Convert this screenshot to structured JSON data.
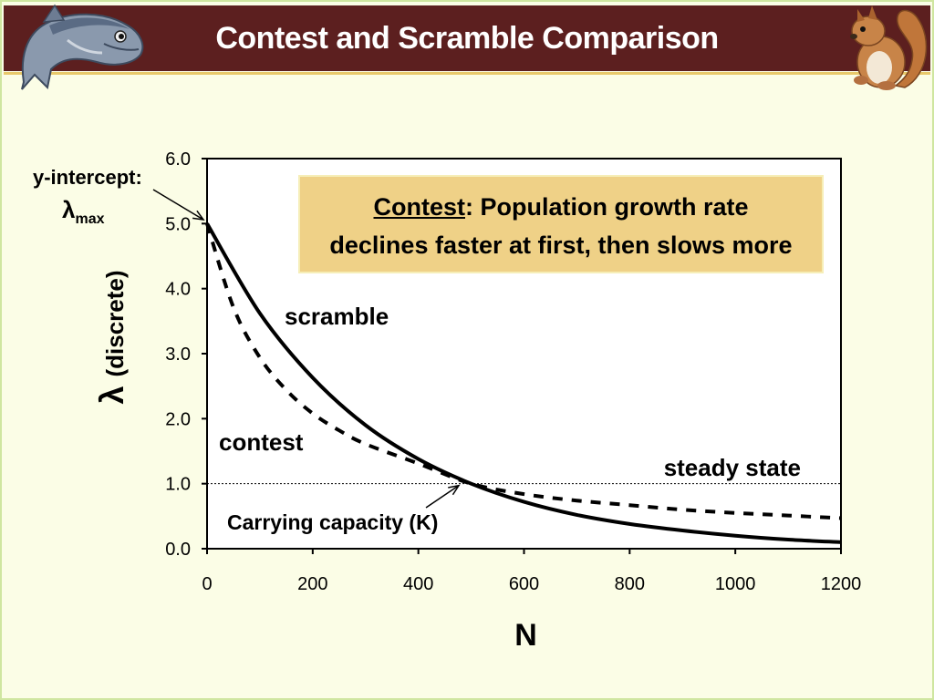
{
  "slide": {
    "title": "Contest and Scramble Comparison",
    "colors": {
      "header": "#5c1f1f",
      "background": "#fbfde6",
      "callout": "#efd187"
    },
    "icons": [
      "salmon-fish-icon",
      "red-squirrel-icon"
    ]
  },
  "callout": {
    "term": "Contest",
    "line1_rest": ": Population growth rate",
    "line2": "declines faster at first, then slows more"
  },
  "annotations": {
    "y_intercept": "y-intercept:",
    "lambda": "λ",
    "max": "max",
    "scramble": "scramble",
    "contest": "contest",
    "steady_state": "steady state",
    "carrying_capacity": "Carrying capacity (K)"
  },
  "chart_data": {
    "type": "line",
    "xlabel": "N",
    "ylabel_symbol": "λ",
    "ylabel_text": "(discrete)",
    "xlim": [
      0,
      1200
    ],
    "ylim": [
      0,
      6
    ],
    "x_ticks": [
      "0",
      "200",
      "400",
      "600",
      "800",
      "1000",
      "1200"
    ],
    "y_ticks": [
      "0.0",
      "1.0",
      "2.0",
      "3.0",
      "4.0",
      "5.0",
      "6.0"
    ],
    "grid": false,
    "reference_line": {
      "y": 1.0,
      "label": "steady state",
      "style": "dotted"
    },
    "series": [
      {
        "name": "scramble",
        "style": "solid",
        "x": [
          0,
          100,
          200,
          300,
          400,
          500,
          600,
          700,
          800,
          900,
          1000,
          1100,
          1200
        ],
        "y": [
          5.0,
          3.62,
          2.63,
          1.9,
          1.38,
          1.0,
          0.72,
          0.52,
          0.38,
          0.28,
          0.2,
          0.14,
          0.1
        ]
      },
      {
        "name": "contest",
        "style": "dashed",
        "x": [
          0,
          50,
          100,
          150,
          200,
          250,
          300,
          400,
          500,
          600,
          700,
          800,
          900,
          1000,
          1100,
          1200
        ],
        "y": [
          5.0,
          3.71,
          2.94,
          2.44,
          2.08,
          1.82,
          1.61,
          1.31,
          1.0,
          0.84,
          0.74,
          0.67,
          0.6,
          0.55,
          0.51,
          0.47
        ]
      }
    ]
  }
}
